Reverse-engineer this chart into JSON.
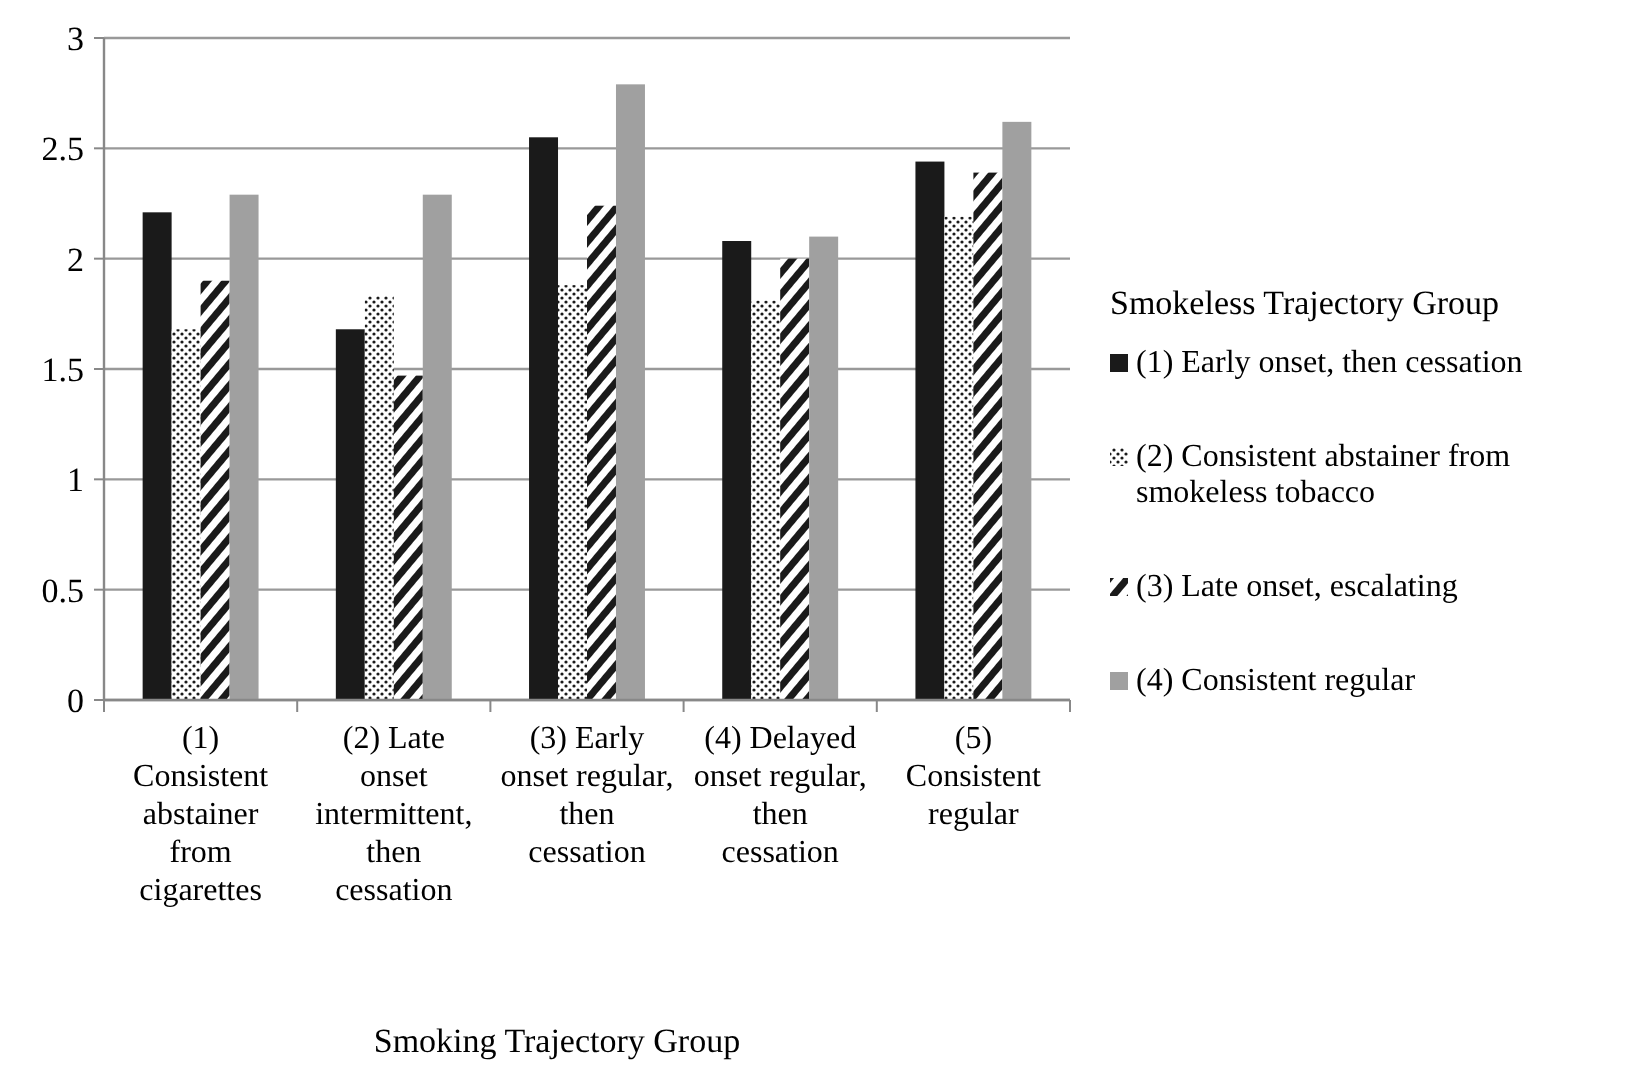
{
  "chart_data": {
    "type": "bar",
    "xlabel": "Smoking Trajectory Group",
    "legend_title": "Smokeless Trajectory Group",
    "categories": [
      "(1) Consistent abstainer from cigarettes",
      "(2) Late onset intermittent, then cessation",
      "(3) Early onset regular, then cessation",
      "(4) Delayed onset regular, then cessation",
      "(5) Consistent regular"
    ],
    "series": [
      {
        "name": "(1) Early onset, then cessation",
        "color": "#1a1a1a",
        "values": [
          2.21,
          1.68,
          2.55,
          2.08,
          2.44
        ]
      },
      {
        "name": "(2) Consistent abstainer from smokeless tobacco",
        "color": "#1a1a1a",
        "values": [
          1.68,
          1.83,
          1.88,
          1.81,
          2.19
        ]
      },
      {
        "name": "(3) Late onset, escalating",
        "color": "#1a1a1a",
        "values": [
          1.9,
          1.47,
          2.24,
          2.0,
          2.39
        ]
      },
      {
        "name": "(4) Consistent regular",
        "color": "#a0a0a0",
        "values": [
          2.29,
          2.29,
          2.79,
          2.1,
          2.62
        ]
      }
    ],
    "ylim": [
      0,
      3
    ],
    "yticks": [
      0,
      0.5,
      1,
      1.5,
      2,
      2.5,
      3
    ],
    "grid": "y",
    "legend": "right"
  }
}
